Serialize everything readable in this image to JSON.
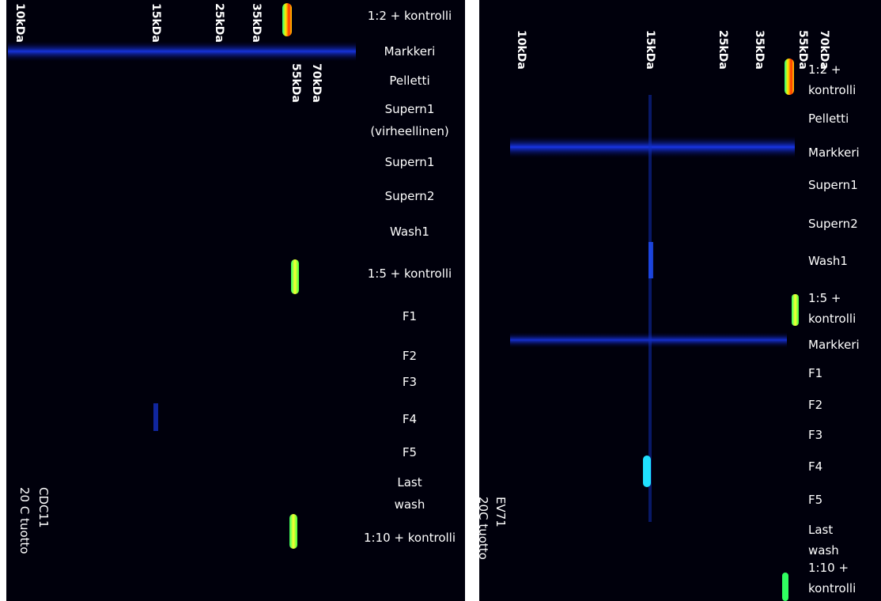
{
  "panels": [
    {
      "markers": [
        "10kDa",
        "15kDa",
        "25kDa",
        "35kDa",
        "55kDa",
        "70kDa"
      ],
      "lanes": [
        [
          "1:2 + kontrolli"
        ],
        [
          "Markkeri"
        ],
        [
          "Pelletti"
        ],
        [
          "Supern1",
          "(virheellinen)"
        ],
        [
          "Supern1"
        ],
        [
          "Supern2"
        ],
        [
          "Wash1"
        ],
        [
          "1:5 + kontrolli"
        ],
        [
          "F1"
        ],
        [
          "F2"
        ],
        [
          "F3"
        ],
        [
          "F4"
        ],
        [
          "F5"
        ],
        [
          "Last",
          "wash"
        ],
        [
          "1:10 + kontrolli"
        ]
      ],
      "sample": [
        "CDC11",
        "20 C tuotto"
      ]
    },
    {
      "markers": [
        "10kDa",
        "15kDa",
        "25kDa",
        "35kDa",
        "55kDa",
        "70kDa"
      ],
      "lanes": [
        [
          "1:2 +",
          "kontrolli"
        ],
        [
          "Pelletti"
        ],
        [
          "Markkeri"
        ],
        [
          "Supern1"
        ],
        [
          "Supern2"
        ],
        [
          "Wash1"
        ],
        [
          "1:5 +",
          "kontrolli"
        ],
        [
          "Markkeri"
        ],
        [
          "F1"
        ],
        [
          "F2"
        ],
        [
          "F3"
        ],
        [
          "F4"
        ],
        [
          "F5"
        ],
        [
          "Last",
          "wash"
        ],
        [
          "1:10 +",
          "kontrolli"
        ]
      ],
      "sample": [
        "EV71",
        "20C tuotto"
      ]
    }
  ]
}
